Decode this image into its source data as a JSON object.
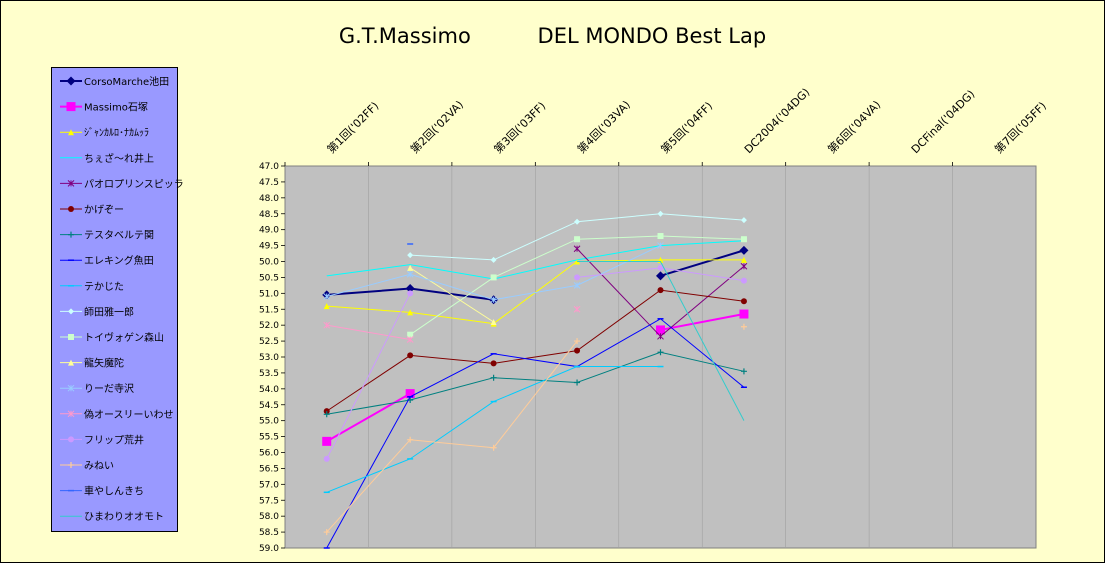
{
  "chart_data": {
    "type": "line",
    "title": "G.T.Massimo          DEL MONDO Best Lap",
    "categories": [
      "第1回('02FF)",
      "第2回('02VA)",
      "第3回('03FF)",
      "第4回('03VA)",
      "第5回('04FF)",
      "DC2004('04DG)",
      "第6回('04VA)",
      "DCFinal('04DG)",
      "第7回('05FF)"
    ],
    "ylim": [
      47.0,
      59.0
    ],
    "y_reversed": true,
    "y_ticks": [
      "47.0",
      "47.5",
      "48.0",
      "48.5",
      "49.0",
      "49.5",
      "50.0",
      "50.5",
      "51.0",
      "51.5",
      "52.0",
      "52.5",
      "53.0",
      "53.5",
      "54.0",
      "54.5",
      "55.0",
      "55.5",
      "56.0",
      "56.5",
      "57.0",
      "57.5",
      "58.0",
      "58.5",
      "59.0"
    ],
    "grid": true,
    "plot_background": "#c0c0c0",
    "legend_position": "left",
    "series": [
      {
        "name": "CorsoMarche池田",
        "color": "#000080",
        "marker": "diamond",
        "width": 2,
        "values": [
          51.05,
          50.85,
          51.2,
          null,
          50.45,
          49.65,
          null,
          null,
          null
        ]
      },
      {
        "name": "Massimo石塚",
        "color": "#ff00ff",
        "marker": "square",
        "width": 2,
        "values": [
          55.65,
          54.15,
          null,
          null,
          52.15,
          51.65,
          null,
          null,
          null
        ]
      },
      {
        "name": "ｼﾞｬﾝｶﾙﾛ･ﾅｶﾑｯﾗ",
        "color": "#ffff00",
        "marker": "triangle",
        "width": 1,
        "values": [
          51.4,
          51.6,
          51.95,
          50.0,
          49.95,
          49.95,
          null,
          null,
          null
        ]
      },
      {
        "name": "ちぇざ～れ井上",
        "color": "#00ffff",
        "marker": "none",
        "width": 1,
        "values": [
          50.45,
          50.1,
          50.55,
          49.95,
          49.5,
          49.35,
          null,
          null,
          null
        ]
      },
      {
        "name": "パオロプリンスピッラ",
        "color": "#800080",
        "marker": "star",
        "width": 1,
        "values": [
          null,
          null,
          null,
          49.6,
          52.35,
          50.15,
          null,
          null,
          null
        ]
      },
      {
        "name": "かげぞー",
        "color": "#800000",
        "marker": "circle",
        "width": 1,
        "values": [
          54.7,
          52.95,
          53.2,
          52.8,
          50.9,
          51.25,
          null,
          null,
          null
        ]
      },
      {
        "name": "テスタベルテ関",
        "color": "#008080",
        "marker": "plus",
        "width": 1,
        "values": [
          54.8,
          54.35,
          53.65,
          53.8,
          52.85,
          53.45,
          null,
          null,
          null
        ]
      },
      {
        "name": "エレキング魚田",
        "color": "#0000ff",
        "marker": "dash",
        "width": 1,
        "values": [
          59.0,
          54.25,
          52.9,
          53.3,
          51.8,
          53.95,
          null,
          null,
          null
        ]
      },
      {
        "name": "テかじた",
        "color": "#00ccff",
        "marker": "dash",
        "width": 1,
        "values": [
          57.25,
          56.2,
          54.4,
          53.3,
          53.3,
          null,
          null,
          null,
          null
        ]
      },
      {
        "name": "師田雅一郎",
        "color": "#ccffff",
        "marker": "diamond",
        "width": 1,
        "values": [
          null,
          49.8,
          49.95,
          48.75,
          48.5,
          48.7,
          null,
          null,
          null
        ]
      },
      {
        "name": "トイヴォゲン森山",
        "color": "#ccffcc",
        "marker": "square",
        "width": 1,
        "values": [
          null,
          52.3,
          50.5,
          49.3,
          49.2,
          49.3,
          null,
          null,
          null
        ]
      },
      {
        "name": "龍矢魔陀",
        "color": "#ffff99",
        "marker": "triangle",
        "width": 1,
        "values": [
          null,
          50.2,
          51.9,
          null,
          null,
          null,
          null,
          null,
          null
        ]
      },
      {
        "name": "りーだ寺沢",
        "color": "#99ccff",
        "marker": "star",
        "width": 1,
        "values": [
          51.1,
          50.4,
          51.2,
          50.75,
          49.5,
          null,
          null,
          null,
          null
        ]
      },
      {
        "name": "偽オースリーいわせ",
        "color": "#ff99cc",
        "marker": "star",
        "width": 1,
        "values": [
          52.0,
          52.45,
          null,
          51.5,
          null,
          null,
          null,
          null,
          null
        ]
      },
      {
        "name": "フリップ荒井",
        "color": "#cc99ff",
        "marker": "circle",
        "width": 1,
        "values": [
          56.2,
          51.0,
          null,
          50.5,
          50.2,
          50.6,
          null,
          null,
          null
        ]
      },
      {
        "name": "みねい",
        "color": "#ffcc99",
        "marker": "plus",
        "width": 1,
        "values": [
          58.5,
          55.6,
          55.85,
          52.5,
          null,
          52.05,
          null,
          null,
          null
        ]
      },
      {
        "name": "車やしんきち",
        "color": "#3366ff",
        "marker": "dash",
        "width": 1,
        "values": [
          null,
          49.45,
          null,
          null,
          null,
          null,
          null,
          null,
          null
        ]
      },
      {
        "name": "ひまわりオオモト",
        "color": "#33cccc",
        "marker": "none",
        "width": 1,
        "values": [
          50.4,
          null,
          null,
          50.0,
          50.0,
          55.0,
          null,
          null,
          null
        ]
      }
    ]
  }
}
